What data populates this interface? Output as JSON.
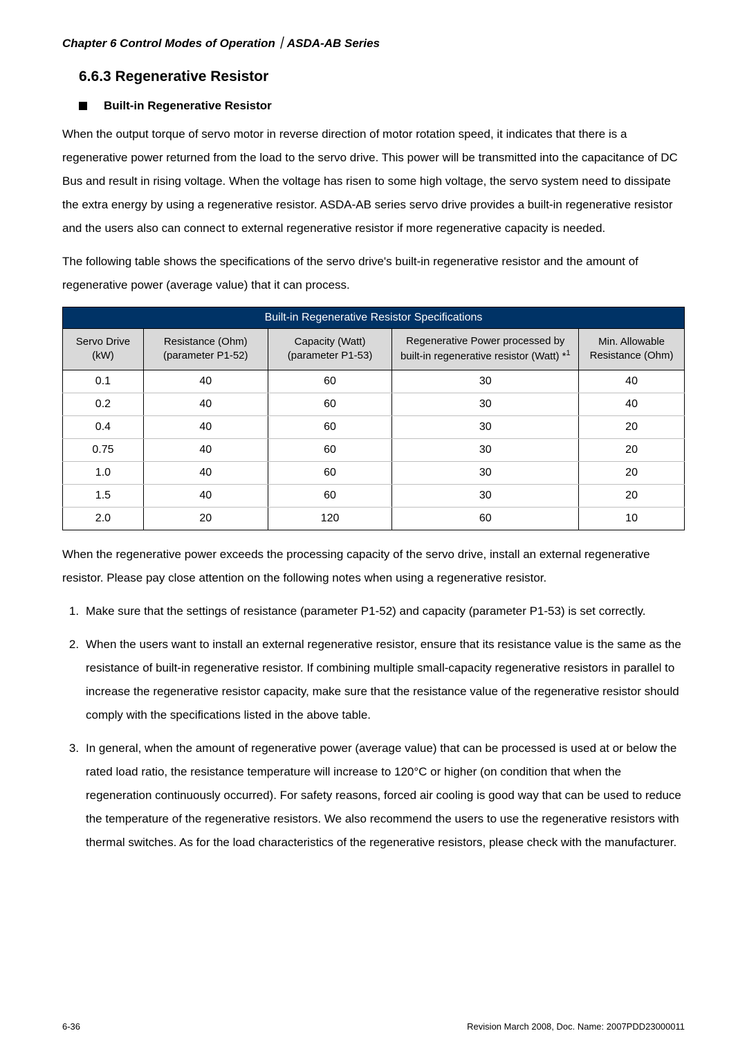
{
  "header": {
    "chapter_line": "Chapter 6  Control Modes of Operation｜ASDA-AB Series"
  },
  "section": {
    "number_title": "6.6.3  Regenerative Resistor",
    "sub_heading": "Built-in Regenerative Resistor"
  },
  "paragraphs": {
    "p1": "When the output torque of servo motor in reverse direction of motor rotation speed, it indicates that there is a regenerative power returned from the load to the servo drive. This power will be transmitted into the capacitance of DC Bus and result in rising voltage. When the voltage has risen to some high voltage, the servo system need to dissipate the extra energy by using a regenerative resistor. ASDA-AB series servo drive provides a built-in regenerative resistor and the users also can connect to external regenerative resistor if more regenerative capacity is needed.",
    "p2": "The following table shows the specifications of the servo drive's built-in regenerative resistor and the amount of regenerative power (average value) that it can process.",
    "p3": "When the regenerative power exceeds the processing capacity of the servo drive, install an external regenerative resistor. Please pay close attention on the following notes when using a regenerative resistor."
  },
  "table": {
    "title": "Built-in Regenerative Resistor Specifications",
    "columns": {
      "c0": "Servo Drive (kW)",
      "c1": "Resistance (Ohm) (parameter P1-52)",
      "c2": "Capacity (Watt) (parameter P1-53)",
      "c3_a": "Regenerative Power processed by built-in regenerative resistor (Watt) *",
      "c3_sup": "1",
      "c4": "Min. Allowable Resistance (Ohm)"
    },
    "col_widths": [
      "13%",
      "20%",
      "20%",
      "30%",
      "17%"
    ],
    "header_bg": "#003366",
    "header_fg": "#ffffff",
    "subheader_bg": "#d9d9d9",
    "rows": [
      [
        "0.1",
        "40",
        "60",
        "30",
        "40"
      ],
      [
        "0.2",
        "40",
        "60",
        "30",
        "40"
      ],
      [
        "0.4",
        "40",
        "60",
        "30",
        "20"
      ],
      [
        "0.75",
        "40",
        "60",
        "30",
        "20"
      ],
      [
        "1.0",
        "40",
        "60",
        "30",
        "20"
      ],
      [
        "1.5",
        "40",
        "60",
        "30",
        "20"
      ],
      [
        "2.0",
        "20",
        "120",
        "60",
        "10"
      ]
    ]
  },
  "list": {
    "items": [
      {
        "num": "1.",
        "text": "Make sure that the settings of resistance (parameter P1-52) and capacity (parameter P1-53) is set correctly."
      },
      {
        "num": "2.",
        "text": "When the users want to install an external regenerative resistor, ensure that its resistance value is the same as the resistance of built-in regenerative resistor. If combining multiple small-capacity regenerative resistors in parallel to increase the regenerative resistor capacity, make sure that the resistance value of the regenerative resistor should comply with the specifications listed in the above table."
      },
      {
        "num": "3.",
        "text": "In general, when the amount of regenerative power (average value) that can be processed is used at or below the rated load ratio, the resistance temperature will increase to 120°C or higher (on condition that when the regeneration continuously occurred). For safety reasons, forced air cooling is good way that can be used to reduce the temperature of the regenerative resistors. We also recommend the users to use the regenerative resistors with thermal switches. As for the load characteristics of the regenerative resistors, please check with the manufacturer."
      }
    ]
  },
  "footer": {
    "left": "6-36",
    "right": "Revision March 2008, Doc. Name: 2007PDD23000011"
  }
}
